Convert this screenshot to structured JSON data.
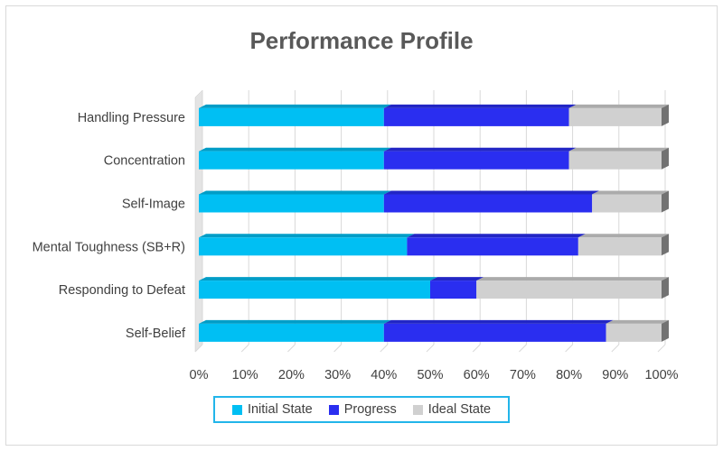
{
  "chart_data": {
    "type": "bar",
    "orientation": "horizontal",
    "stacked": "100%",
    "title": "Performance Profile",
    "categories": [
      "Handling Pressure",
      "Concentration",
      "Self-Image",
      "Mental Toughness (SB+R)",
      "Responding to Defeat",
      "Self-Belief"
    ],
    "series": [
      {
        "name": "Initial State",
        "color": "#00bff3",
        "values": [
          40,
          40,
          40,
          45,
          50,
          40
        ]
      },
      {
        "name": "Progress",
        "color": "#2a2ef0",
        "values": [
          40,
          40,
          45,
          37,
          10,
          48
        ]
      },
      {
        "name": "Ideal State",
        "color": "#d0d0d0",
        "values": [
          20,
          20,
          15,
          18,
          40,
          12
        ]
      }
    ],
    "xlim": [
      0,
      100
    ],
    "xticks": [
      "0%",
      "10%",
      "20%",
      "30%",
      "40%",
      "50%",
      "60%",
      "70%",
      "80%",
      "90%",
      "100%"
    ],
    "grid": true,
    "legend_position": "bottom"
  }
}
